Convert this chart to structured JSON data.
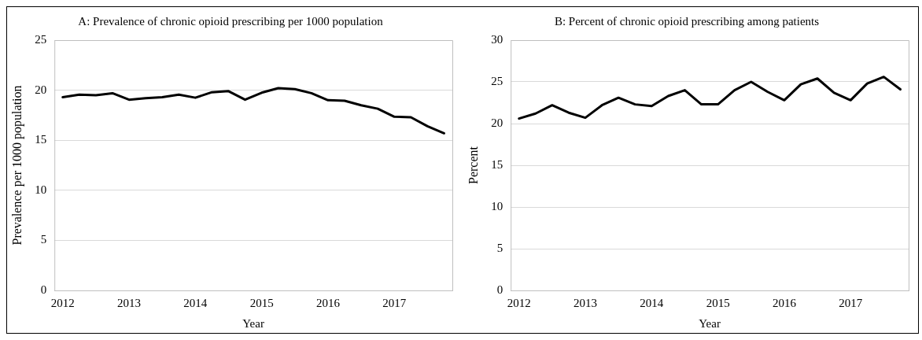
{
  "chart_data": [
    {
      "type": "line",
      "title": "A: Prevalence of chronic opioid prescribing per 1000 population",
      "xlabel": "Year",
      "ylabel": "Prevalence per 1000 population",
      "categories": [
        "2012",
        null,
        null,
        null,
        "2013",
        null,
        null,
        null,
        "2014",
        null,
        null,
        null,
        "2015",
        null,
        null,
        null,
        "2016",
        null,
        null,
        null,
        "2017",
        null,
        null,
        null
      ],
      "series": [
        {
          "color": "#000000",
          "values": [
            19.3,
            19.55,
            19.5,
            19.7,
            19.05,
            19.2,
            19.3,
            19.55,
            19.25,
            19.8,
            19.9,
            19.05,
            19.75,
            20.2,
            20.1,
            19.7,
            19.0,
            18.95,
            18.5,
            18.15,
            17.35,
            17.3,
            16.4,
            15.7
          ]
        }
      ],
      "ylim": [
        0,
        25
      ],
      "yticks": [
        0,
        5,
        10,
        15,
        20,
        25
      ],
      "grid": "y",
      "legend": false,
      "marker": "none",
      "line_style": "solid"
    },
    {
      "type": "line",
      "title": "B: Percent of chronic opioid prescribing among patients",
      "xlabel": "Year",
      "ylabel": "Percent",
      "categories": [
        "2012",
        null,
        null,
        null,
        "2013",
        null,
        null,
        null,
        "2014",
        null,
        null,
        null,
        "2015",
        null,
        null,
        null,
        "2016",
        null,
        null,
        null,
        "2017",
        null,
        null,
        null
      ],
      "series": [
        {
          "color": "#000000",
          "values": [
            20.6,
            21.2,
            22.2,
            21.3,
            20.7,
            22.2,
            23.1,
            22.3,
            22.1,
            23.3,
            24.0,
            22.3,
            22.3,
            24.0,
            25.0,
            23.8,
            22.8,
            24.7,
            25.4,
            23.7,
            22.8,
            24.8,
            25.6,
            24.1
          ]
        }
      ],
      "ylim": [
        0,
        30
      ],
      "yticks": [
        0,
        5,
        10,
        15,
        20,
        25,
        30
      ],
      "grid": "y",
      "legend": false,
      "marker": "none",
      "line_style": "solid"
    }
  ]
}
